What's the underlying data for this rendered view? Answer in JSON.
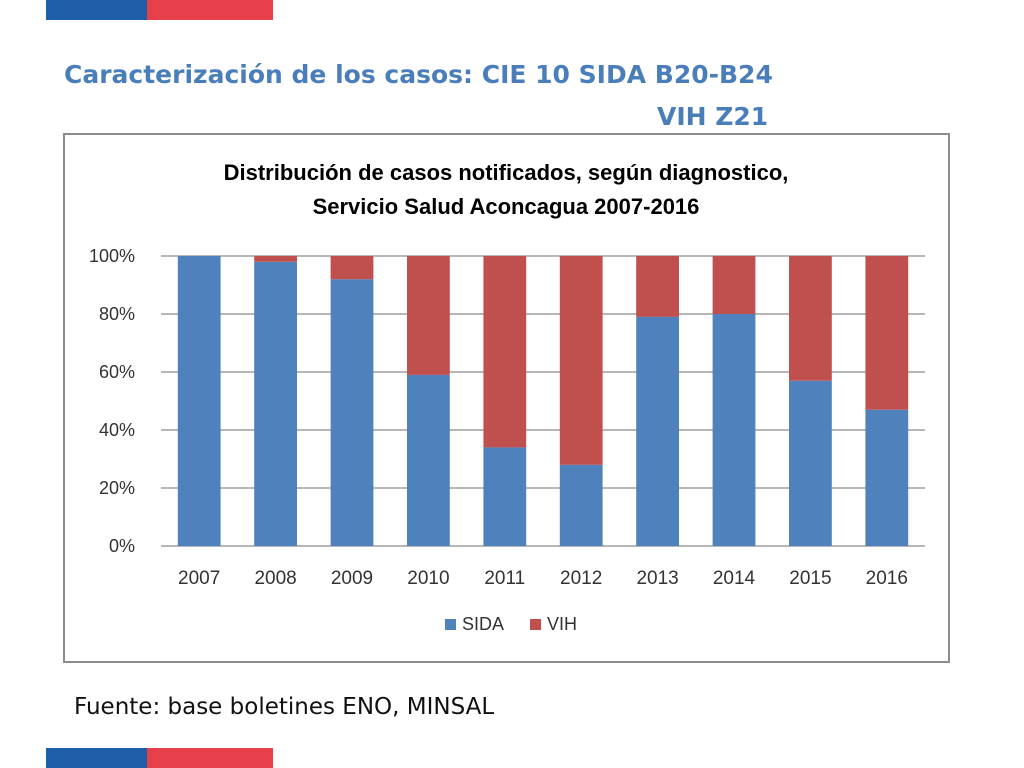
{
  "slide": {
    "title_line1": "Caracterización de los casos: CIE 10 SIDA B20-B24",
    "title_line2": "VIH Z21",
    "source": "Fuente: base boletines ENO, MINSAL"
  },
  "colors": {
    "flag_blue": "#1f5ea8",
    "flag_red": "#e8404a",
    "title": "#4a7ebb",
    "sida": "#4f81bd",
    "vih": "#c0504d",
    "grid": "#8c8c8c"
  },
  "chart_data": {
    "type": "bar",
    "stacked": true,
    "title_lines": [
      "Distribución de casos notificados, según diagnostico,",
      "Servicio Salud Aconcagua 2007-2016"
    ],
    "categories": [
      "2007",
      "2008",
      "2009",
      "2010",
      "2011",
      "2012",
      "2013",
      "2014",
      "2015",
      "2016"
    ],
    "series": [
      {
        "name": "SIDA",
        "values": [
          100,
          98,
          92,
          59,
          34,
          28,
          79,
          80,
          57,
          47
        ]
      },
      {
        "name": "VIH",
        "values": [
          0,
          2,
          8,
          41,
          66,
          72,
          21,
          20,
          43,
          53
        ]
      }
    ],
    "ylim": [
      0,
      100
    ],
    "yticks": [
      0,
      20,
      40,
      60,
      80,
      100
    ],
    "ytick_labels": [
      "0%",
      "20%",
      "40%",
      "60%",
      "80%",
      "100%"
    ],
    "xlabel": "",
    "ylabel": "",
    "grid": true,
    "legend_position": "bottom"
  }
}
